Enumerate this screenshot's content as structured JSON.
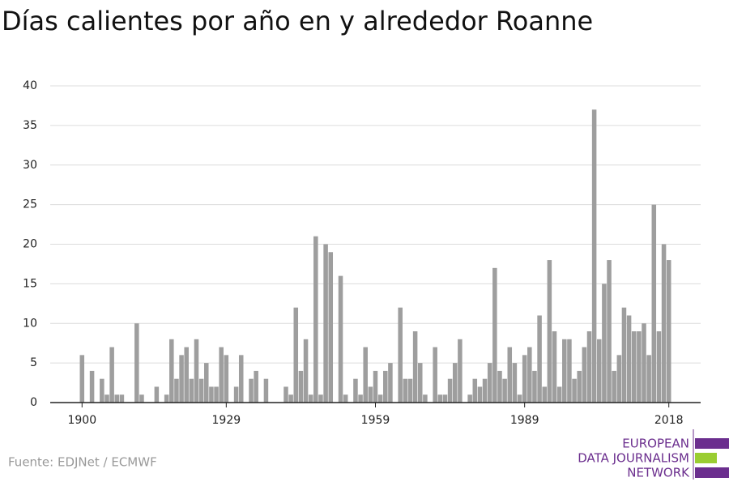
{
  "chart_data": {
    "type": "bar",
    "title": "Días calientes por año en y alrededor Roanne",
    "source": "Fuente: EDJNet / ECMWF",
    "logo": [
      "EUROPEAN",
      "DATA JOURNALISM",
      "NETWORK"
    ],
    "color": "#9e9e9e",
    "grid": true,
    "x": [
      1900,
      1901,
      1902,
      1903,
      1904,
      1905,
      1906,
      1907,
      1908,
      1909,
      1910,
      1911,
      1912,
      1913,
      1914,
      1915,
      1916,
      1917,
      1918,
      1919,
      1920,
      1921,
      1922,
      1923,
      1924,
      1925,
      1926,
      1927,
      1928,
      1929,
      1930,
      1931,
      1932,
      1933,
      1934,
      1935,
      1936,
      1937,
      1938,
      1939,
      1940,
      1941,
      1942,
      1943,
      1944,
      1945,
      1946,
      1947,
      1948,
      1949,
      1950,
      1951,
      1952,
      1953,
      1954,
      1955,
      1956,
      1957,
      1958,
      1959,
      1960,
      1961,
      1962,
      1963,
      1964,
      1965,
      1966,
      1967,
      1968,
      1969,
      1970,
      1971,
      1972,
      1973,
      1974,
      1975,
      1976,
      1977,
      1978,
      1979,
      1980,
      1981,
      1982,
      1983,
      1984,
      1985,
      1986,
      1987,
      1988,
      1989,
      1990,
      1991,
      1992,
      1993,
      1994,
      1995,
      1996,
      1997,
      1998,
      1999,
      2000,
      2001,
      2002,
      2003,
      2004,
      2005,
      2006,
      2007,
      2008,
      2009,
      2010,
      2011,
      2012,
      2013,
      2014,
      2015,
      2016,
      2017,
      2018
    ],
    "values": [
      6,
      0,
      4,
      0,
      3,
      1,
      7,
      1,
      1,
      0,
      0,
      10,
      1,
      0,
      0,
      2,
      0,
      1,
      8,
      3,
      6,
      7,
      3,
      8,
      3,
      5,
      2,
      2,
      7,
      6,
      0,
      2,
      6,
      0,
      3,
      4,
      0,
      3,
      0,
      0,
      0,
      2,
      1,
      12,
      4,
      8,
      1,
      21,
      1,
      20,
      19,
      0,
      16,
      1,
      0,
      3,
      1,
      7,
      2,
      4,
      1,
      4,
      5,
      0,
      12,
      3,
      3,
      9,
      5,
      1,
      0,
      7,
      1,
      1,
      3,
      5,
      8,
      0,
      1,
      3,
      2,
      3,
      5,
      17,
      4,
      3,
      7,
      5,
      1,
      6,
      7,
      4,
      11,
      2,
      18,
      9,
      2,
      8,
      8,
      3,
      4,
      7,
      9,
      37,
      8,
      15,
      18,
      4,
      6,
      12,
      11,
      9,
      9,
      10,
      6,
      25,
      9,
      20,
      18
    ],
    "xlim": [
      1893.6,
      2024.4
    ],
    "xticks": [
      1900,
      1929,
      1959,
      1989,
      2018
    ],
    "ylim": [
      0,
      40
    ],
    "yticks": [
      0,
      5,
      10,
      15,
      20,
      25,
      30,
      35,
      40
    ]
  }
}
